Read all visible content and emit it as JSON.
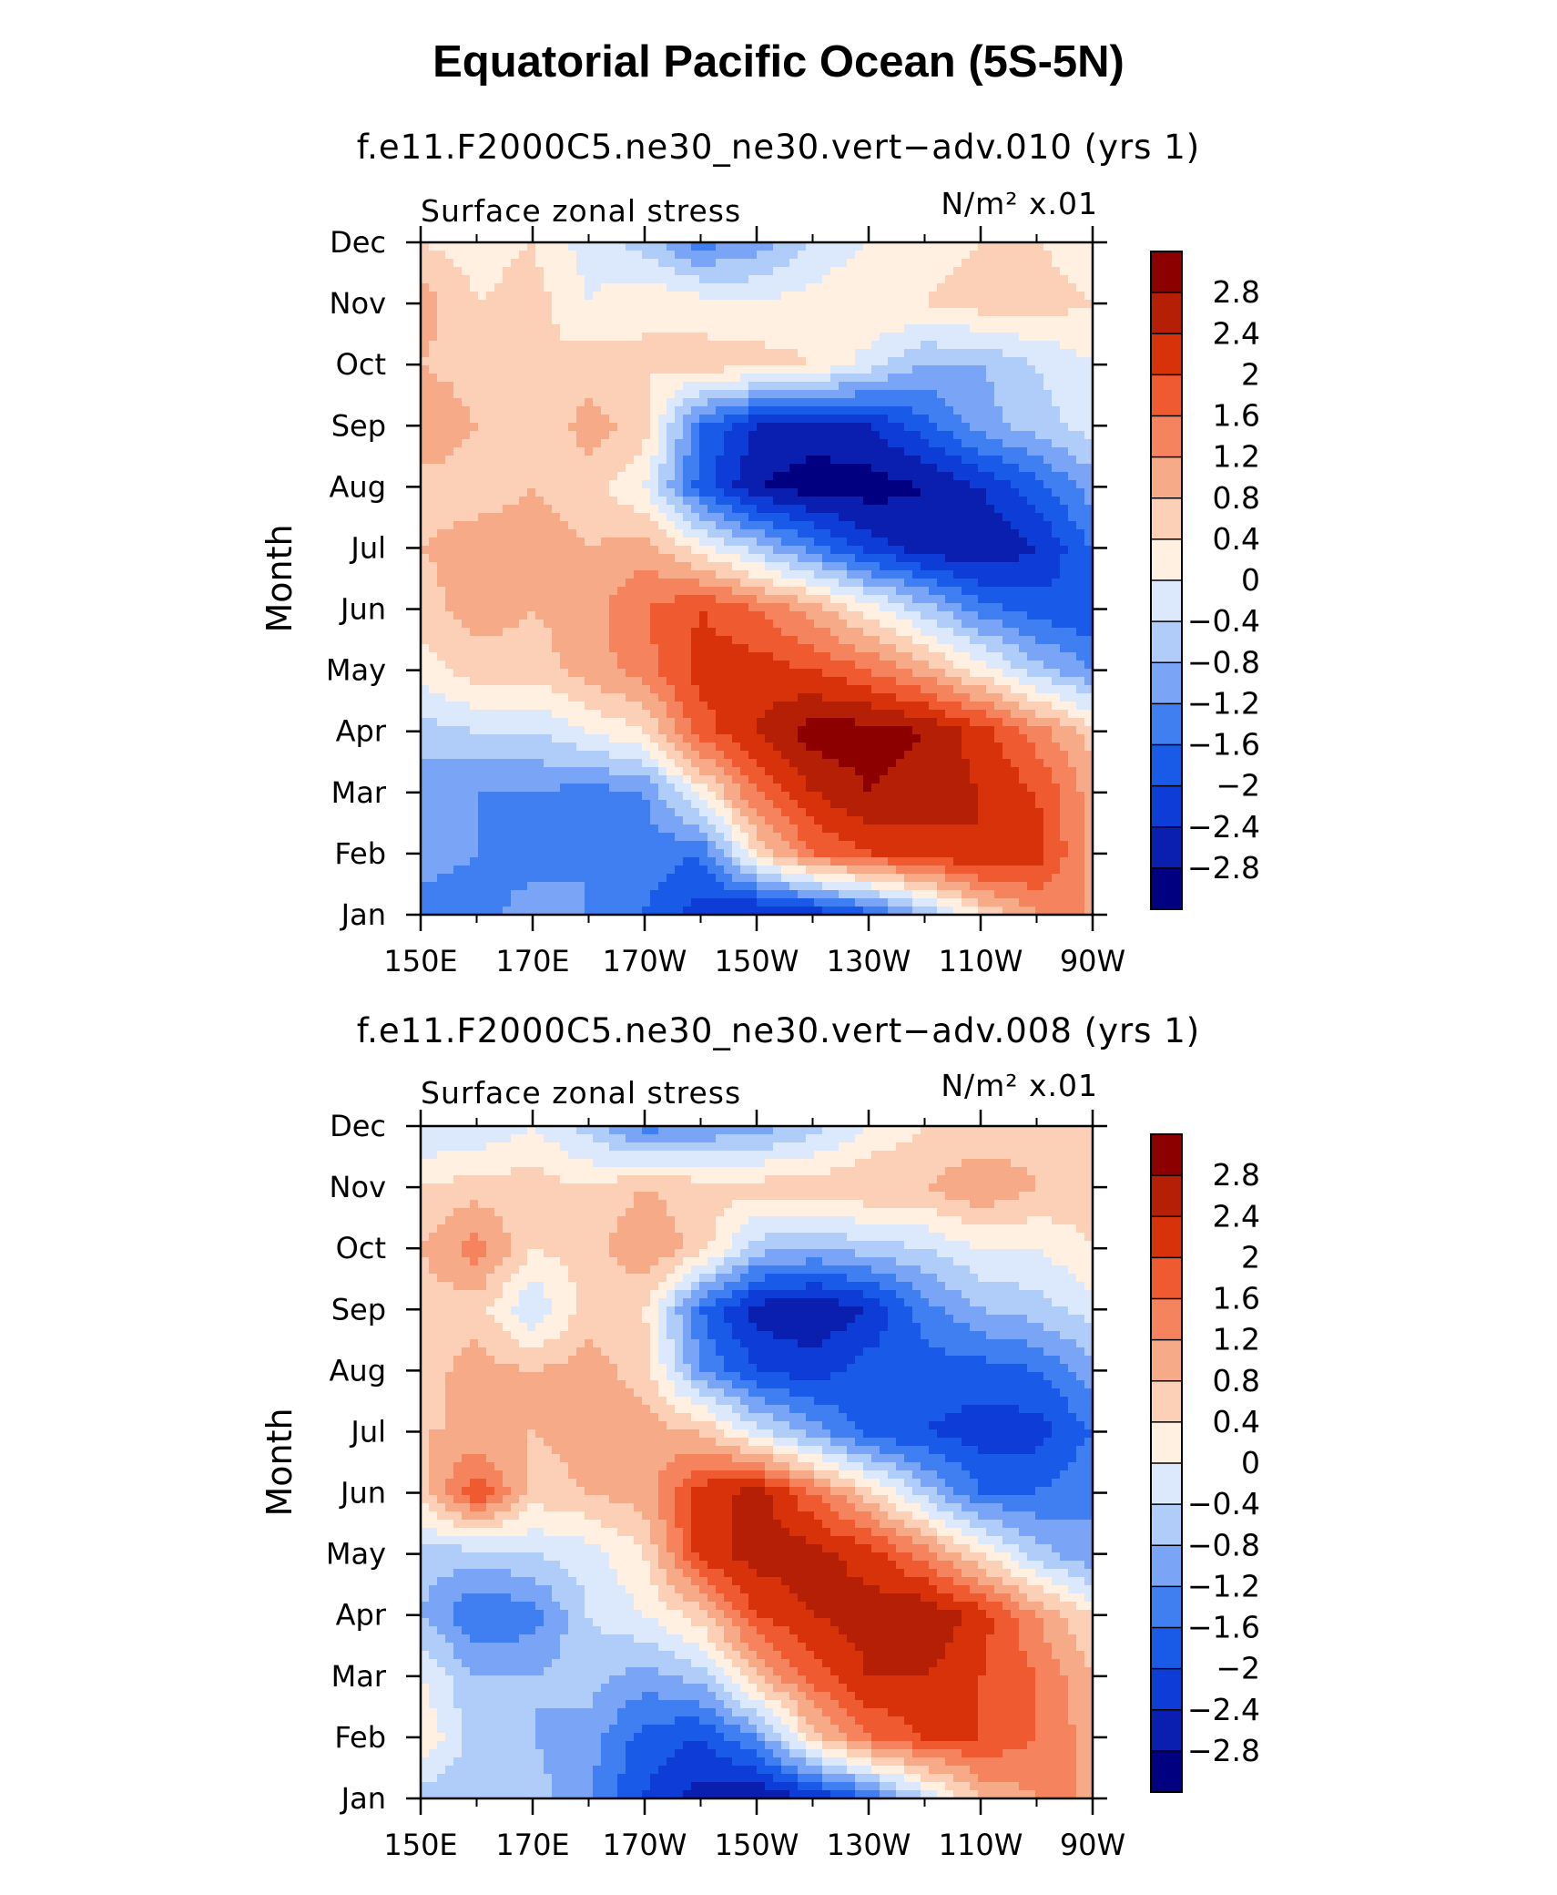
{
  "title": "Equatorial Pacific Ocean (5S-5N)",
  "colorbar_colors": [
    "#000080",
    "#0a1fb0",
    "#0d3cd6",
    "#1a5ae8",
    "#3f7ff2",
    "#7aa5f7",
    "#b0cdfa",
    "#dce9fc",
    "#fff0e1",
    "#fcd0b6",
    "#f7aa88",
    "#f5835e",
    "#f05a30",
    "#d8320a",
    "#b41f06",
    "#8c0000"
  ],
  "chart_data": [
    {
      "type": "heatmap",
      "subtitle": "f.e11.F2000C5.ne30_ne30.vert−adv.010 (yrs 1)",
      "variable": "Surface zonal stress",
      "units": "N/m² x.01",
      "ylabel": "Month",
      "x_ticks": [
        "150E",
        "170E",
        "170W",
        "150W",
        "130W",
        "110W",
        "90W"
      ],
      "y_ticks": [
        "Jan",
        "Feb",
        "Mar",
        "Apr",
        "May",
        "Jun",
        "Jul",
        "Aug",
        "Sep",
        "Oct",
        "Nov",
        "Dec"
      ],
      "colorbar_levels": [
        "−2.8",
        "−2.4",
        "−2",
        "−1.6",
        "−1.2",
        "−0.8",
        "−0.4",
        "0",
        "0.4",
        "0.8",
        "1.2",
        "1.6",
        "2",
        "2.4",
        "2.8"
      ],
      "values": [
        [
          -1.4,
          -1.4,
          -1.0,
          -1.2,
          -1.6,
          -2.2,
          -2.6,
          -2.4,
          -1.8,
          -0.8,
          0.4,
          1.2,
          1.2
        ],
        [
          -1.0,
          -1.2,
          -1.4,
          -1.2,
          -1.4,
          -1.6,
          0.4,
          1.6,
          2.0,
          2.2,
          2.4,
          2.2,
          1.0
        ],
        [
          -1.0,
          -1.2,
          -1.2,
          -1.4,
          -1.2,
          0.2,
          1.6,
          2.4,
          2.8,
          2.6,
          2.4,
          2.0,
          1.0
        ],
        [
          -0.6,
          -0.4,
          -0.4,
          0.0,
          0.4,
          1.8,
          2.4,
          3.0,
          3.0,
          2.8,
          2.2,
          1.4,
          0.6
        ],
        [
          0.2,
          0.6,
          0.6,
          1.0,
          1.4,
          2.2,
          2.2,
          2.0,
          1.6,
          1.0,
          0.2,
          -0.6,
          -1.2
        ],
        [
          0.6,
          1.0,
          0.8,
          1.0,
          1.6,
          2.0,
          1.6,
          1.0,
          0.2,
          -0.6,
          -1.4,
          -1.8,
          -2.0
        ],
        [
          0.8,
          1.0,
          1.0,
          0.8,
          1.0,
          0.2,
          -0.6,
          -1.4,
          -2.2,
          -2.6,
          -2.8,
          -2.4,
          -1.6
        ],
        [
          0.6,
          0.6,
          0.8,
          0.6,
          0.0,
          -1.8,
          -2.8,
          -3.0,
          -3.0,
          -2.8,
          -2.4,
          -1.8,
          -1.0
        ],
        [
          1.2,
          0.8,
          0.4,
          1.0,
          0.6,
          -1.6,
          -2.4,
          -2.6,
          -2.4,
          -1.8,
          -1.0,
          -0.6,
          -0.2
        ],
        [
          0.8,
          0.6,
          0.4,
          0.6,
          0.4,
          0.6,
          0.6,
          0.4,
          -0.2,
          -0.8,
          -0.8,
          -0.4,
          0.0
        ],
        [
          1.0,
          0.4,
          0.6,
          0.0,
          0.4,
          0.2,
          0.0,
          0.2,
          0.4,
          0.4,
          0.6,
          0.6,
          0.4
        ],
        [
          0.4,
          0.2,
          0.4,
          -0.2,
          -0.6,
          -1.4,
          -1.0,
          -0.4,
          0.0,
          0.2,
          0.4,
          0.4,
          0.2
        ]
      ]
    },
    {
      "type": "heatmap",
      "subtitle": "f.e11.F2000C5.ne30_ne30.vert−adv.008 (yrs 1)",
      "variable": "Surface zonal stress",
      "units": "N/m² x.01",
      "ylabel": "Month",
      "x_ticks": [
        "150E",
        "170E",
        "170W",
        "150W",
        "130W",
        "110W",
        "90W"
      ],
      "y_ticks": [
        "Jan",
        "Feb",
        "Mar",
        "Apr",
        "May",
        "Jun",
        "Jul",
        "Aug",
        "Sep",
        "Oct",
        "Nov",
        "Dec"
      ],
      "colorbar_levels": [
        "−2.8",
        "−2.4",
        "−2",
        "−1.6",
        "−1.2",
        "−0.8",
        "−0.4",
        "0",
        "0.4",
        "0.8",
        "1.2",
        "1.6",
        "2",
        "2.4",
        "2.8"
      ],
      "values": [
        [
          -0.6,
          -0.8,
          -0.6,
          -1.2,
          -2.0,
          -2.6,
          -2.8,
          -2.4,
          -1.6,
          -0.4,
          0.8,
          1.2,
          1.2
        ],
        [
          0.4,
          -0.6,
          -0.8,
          -1.0,
          -1.8,
          -2.0,
          -1.2,
          0.6,
          1.6,
          2.0,
          2.0,
          1.6,
          1.0
        ],
        [
          0.0,
          -0.8,
          -0.8,
          -0.6,
          -1.0,
          -0.6,
          0.8,
          1.8,
          2.4,
          2.4,
          2.0,
          1.6,
          0.8
        ],
        [
          -0.8,
          -1.6,
          -1.4,
          -0.4,
          0.0,
          0.6,
          2.0,
          2.4,
          2.6,
          2.8,
          2.2,
          1.2,
          0.4
        ],
        [
          -0.6,
          -0.6,
          -0.4,
          -0.2,
          0.4,
          2.2,
          2.6,
          2.6,
          2.2,
          1.4,
          0.4,
          -0.6,
          -1.2
        ],
        [
          0.6,
          2.0,
          0.6,
          0.8,
          1.0,
          2.2,
          2.6,
          1.6,
          0.6,
          -0.6,
          -1.6,
          -1.6,
          -1.2
        ],
        [
          0.8,
          0.8,
          0.8,
          1.0,
          1.0,
          0.8,
          -0.2,
          -1.0,
          -1.8,
          -2.0,
          -2.2,
          -2.2,
          -1.6
        ],
        [
          0.6,
          1.0,
          0.8,
          1.0,
          0.6,
          -1.2,
          -2.0,
          -2.2,
          -1.8,
          -1.8,
          -1.8,
          -1.6,
          -1.0
        ],
        [
          0.6,
          0.6,
          -0.4,
          0.6,
          0.4,
          -1.6,
          -2.6,
          -2.8,
          -2.4,
          -1.4,
          -0.8,
          -0.6,
          -0.2
        ],
        [
          0.8,
          1.4,
          0.4,
          0.6,
          1.2,
          0.6,
          -0.6,
          -0.8,
          -0.6,
          -0.4,
          0.0,
          0.0,
          0.4
        ],
        [
          0.4,
          0.6,
          0.6,
          0.4,
          0.8,
          0.6,
          0.6,
          0.6,
          0.8,
          0.8,
          1.2,
          0.8,
          0.6
        ],
        [
          -0.4,
          -0.4,
          0.0,
          -0.6,
          -1.4,
          -1.2,
          -1.0,
          -0.6,
          0.0,
          0.4,
          0.4,
          0.6,
          0.6
        ]
      ]
    }
  ]
}
